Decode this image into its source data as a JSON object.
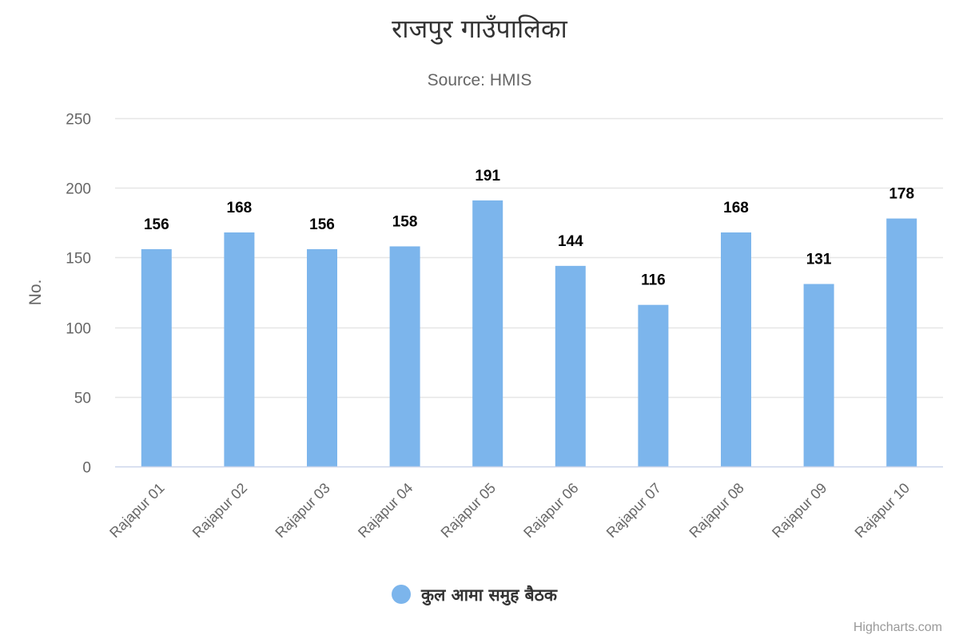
{
  "chart_data": {
    "type": "bar",
    "title": "राजपुर गाउँपालिका",
    "subtitle": "Source: HMIS",
    "ylabel": "No.",
    "xlabel": "",
    "ylim": [
      0,
      250
    ],
    "yticks": [
      0,
      50,
      100,
      150,
      200,
      250
    ],
    "categories": [
      "Rajapur 01",
      "Rajapur 02",
      "Rajapur 03",
      "Rajapur 04",
      "Rajapur 05",
      "Rajapur 06",
      "Rajapur 07",
      "Rajapur 08",
      "Rajapur 09",
      "Rajapur 10"
    ],
    "series": [
      {
        "name": "कुल आमा समुह बैठक",
        "color": "#7cb5ec",
        "values": [
          156,
          168,
          156,
          158,
          191,
          144,
          116,
          168,
          131,
          178
        ]
      }
    ],
    "grid": true,
    "legend": "bottom-center",
    "credits": "Highcharts.com"
  }
}
